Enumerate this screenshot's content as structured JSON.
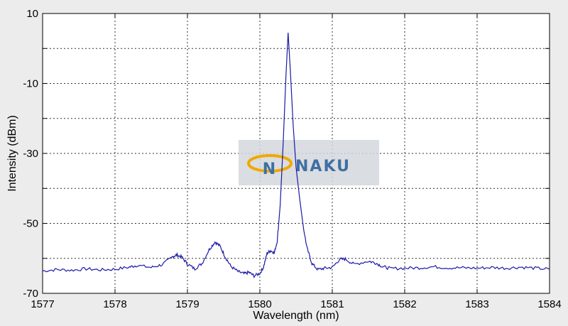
{
  "chart_data": {
    "type": "line",
    "title": "",
    "xlabel": "Wavelength (nm)",
    "ylabel": "Intensity (dBm)",
    "xlim": [
      1577,
      1584
    ],
    "ylim": [
      -70,
      10
    ],
    "xticks": [
      1577,
      1578,
      1579,
      1580,
      1581,
      1582,
      1583,
      1584
    ],
    "yticks_labeled": [
      10,
      -10,
      -30,
      -50,
      -70
    ],
    "yticks_minor": [
      0,
      -20,
      -40,
      -60
    ],
    "grid": true,
    "series": [
      {
        "color": "#1a1aa6",
        "points": [
          [
            1577.0,
            -63.6
          ],
          [
            1577.2,
            -63.2
          ],
          [
            1577.4,
            -63.4
          ],
          [
            1577.6,
            -63.0
          ],
          [
            1577.8,
            -63.3
          ],
          [
            1578.0,
            -63.1
          ],
          [
            1578.2,
            -62.5
          ],
          [
            1578.3,
            -62.0
          ],
          [
            1578.5,
            -62.6
          ],
          [
            1578.65,
            -61.8
          ],
          [
            1578.8,
            -59.5
          ],
          [
            1578.85,
            -59.0
          ],
          [
            1578.92,
            -59.6
          ],
          [
            1579.0,
            -61.6
          ],
          [
            1579.1,
            -63.0
          ],
          [
            1579.2,
            -61.5
          ],
          [
            1579.3,
            -57.5
          ],
          [
            1579.38,
            -55.3
          ],
          [
            1579.45,
            -56.5
          ],
          [
            1579.52,
            -59.5
          ],
          [
            1579.6,
            -62.3
          ],
          [
            1579.7,
            -63.8
          ],
          [
            1579.78,
            -64.4
          ],
          [
            1579.85,
            -64.0
          ],
          [
            1579.92,
            -65.0
          ],
          [
            1580.0,
            -64.3
          ],
          [
            1580.05,
            -62.5
          ],
          [
            1580.1,
            -58.5
          ],
          [
            1580.15,
            -57.8
          ],
          [
            1580.2,
            -58.4
          ],
          [
            1580.24,
            -55.0
          ],
          [
            1580.28,
            -45.0
          ],
          [
            1580.32,
            -28.0
          ],
          [
            1580.36,
            -8.0
          ],
          [
            1580.39,
            4.5
          ],
          [
            1580.42,
            -6.0
          ],
          [
            1580.46,
            -22.0
          ],
          [
            1580.5,
            -34.0
          ],
          [
            1580.55,
            -43.0
          ],
          [
            1580.6,
            -51.0
          ],
          [
            1580.65,
            -57.0
          ],
          [
            1580.72,
            -61.5
          ],
          [
            1580.8,
            -63.2
          ],
          [
            1580.9,
            -62.8
          ],
          [
            1581.0,
            -62.6
          ],
          [
            1581.1,
            -60.3
          ],
          [
            1581.18,
            -60.2
          ],
          [
            1581.3,
            -61.7
          ],
          [
            1581.5,
            -60.8
          ],
          [
            1581.6,
            -61.3
          ],
          [
            1581.7,
            -62.4
          ],
          [
            1581.8,
            -62.9
          ],
          [
            1582.0,
            -62.8
          ],
          [
            1582.2,
            -62.7
          ],
          [
            1582.4,
            -62.4
          ],
          [
            1582.6,
            -62.7
          ],
          [
            1582.8,
            -62.7
          ],
          [
            1583.0,
            -62.8
          ],
          [
            1583.2,
            -62.6
          ],
          [
            1583.4,
            -62.8
          ],
          [
            1583.6,
            -62.5
          ],
          [
            1583.8,
            -62.8
          ],
          [
            1584.0,
            -63.1
          ]
        ]
      }
    ]
  },
  "watermark": {
    "text": "NAKU",
    "logo_letter": "N",
    "colors": [
      "#3f6fa3",
      "#f0a800"
    ]
  }
}
